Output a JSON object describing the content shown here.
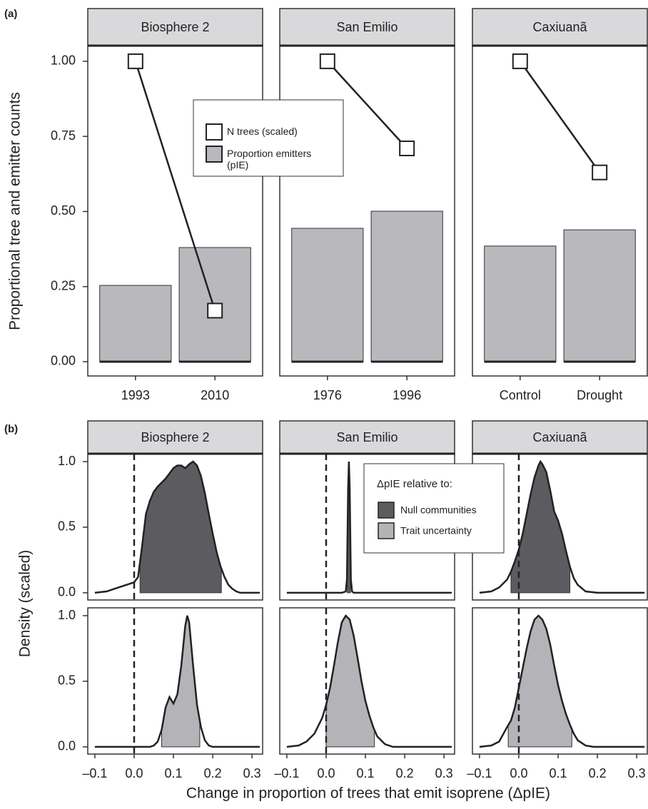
{
  "chart_data": [
    {
      "type": "bar",
      "panel_label": "(a)",
      "y_label": "Proportional tree and emitter counts",
      "ylim": [
        -0.0475,
        1.052
      ],
      "yticks": [
        {
          "value": 0,
          "label": "0.00"
        },
        {
          "value": 0.25,
          "label": "0.25"
        },
        {
          "value": 0.5,
          "label": "0.50"
        },
        {
          "value": 0.75,
          "label": "0.75"
        },
        {
          "value": 1,
          "label": "1.00"
        }
      ],
      "facets": [
        {
          "title": "Biosphere 2",
          "categories": [
            "1993",
            "2010"
          ]
        },
        {
          "title": "San Emilio",
          "categories": [
            "1976",
            "1996"
          ]
        },
        {
          "title": "Caxiuanã",
          "categories": [
            "Control",
            "Drought"
          ]
        }
      ],
      "series": [
        {
          "name": "Proportion emitters (pIE)",
          "type": "bar",
          "color": "#b9b9bd",
          "values": [
            [
              0.254,
              0.38
            ],
            [
              0.444,
              0.501
            ],
            [
              0.385,
              0.439
            ]
          ]
        },
        {
          "name": "N trees (scaled)",
          "type": "line",
          "color": "#ffffff",
          "values": [
            [
              1,
              0.17
            ],
            [
              1,
              0.71
            ],
            [
              1,
              0.63
            ]
          ]
        }
      ]
    },
    {
      "type": "density",
      "panel_label": "(b)",
      "y_label": "Density (scaled)",
      "x_label": "Change in proportion of trees that emit isoprene (ΔpIE)",
      "legend_title": "ΔpIE relative to:",
      "xlim": [
        -0.118,
        0.327
      ],
      "ylim": [
        -0.055,
        1.06
      ],
      "xticks": [
        {
          "value": -0.1,
          "label": "–0.1"
        },
        {
          "value": 0,
          "label": "0.0"
        },
        0.1,
        0.2,
        0.3
      ],
      "yticks": [
        {
          "value": 0,
          "label": "0.0"
        },
        {
          "value": 0.5,
          "label": "0.5"
        },
        {
          "value": 1,
          "label": "1.0"
        }
      ],
      "vline": 0,
      "columns": [
        "Biosphere 2",
        "San Emilio",
        "Caxiuanã"
      ],
      "series": [
        {
          "name": "Null communities",
          "color": "#5c5c60",
          "facets": [
            {
              "x": [
                -0.1,
                -0.07,
                -0.05,
                -0.03,
                -0.01,
                0,
                0.01,
                0.02,
                0.03,
                0.04,
                0.05,
                0.06,
                0.07,
                0.08,
                0.09,
                0.1,
                0.11,
                0.12,
                0.13,
                0.14,
                0.15,
                0.16,
                0.17,
                0.18,
                0.19,
                0.2,
                0.21,
                0.22,
                0.23,
                0.24,
                0.25,
                0.26,
                0.27,
                0.32
              ],
              "values": [
                0,
                0.01,
                0.03,
                0.05,
                0.07,
                0.08,
                0.12,
                0.35,
                0.6,
                0.7,
                0.77,
                0.81,
                0.84,
                0.87,
                0.91,
                0.95,
                0.97,
                0.97,
                0.95,
                0.98,
                1.0,
                0.97,
                0.89,
                0.76,
                0.6,
                0.45,
                0.31,
                0.2,
                0.12,
                0.06,
                0.03,
                0.01,
                0,
                0
              ],
              "interval": [
                0.015,
                0.222
              ]
            },
            {
              "x": [
                -0.1,
                0.04,
                0.05,
                0.053,
                0.056,
                0.058,
                0.06,
                0.063,
                0.066,
                0.07,
                0.32
              ],
              "values": [
                0,
                0,
                0.01,
                0.1,
                0.8,
                1.0,
                0.8,
                0.1,
                0.01,
                0,
                0
              ],
              "interval": [
                0.054,
                0.062
              ]
            },
            {
              "x": [
                -0.1,
                -0.07,
                -0.05,
                -0.03,
                -0.02,
                -0.01,
                0,
                0.01,
                0.02,
                0.03,
                0.04,
                0.05,
                0.055,
                0.06,
                0.07,
                0.08,
                0.09,
                0.1,
                0.11,
                0.12,
                0.13,
                0.14,
                0.15,
                0.17,
                0.2,
                0.32
              ],
              "values": [
                0,
                0.01,
                0.04,
                0.1,
                0.16,
                0.24,
                0.33,
                0.45,
                0.6,
                0.75,
                0.88,
                0.97,
                1.0,
                0.98,
                0.92,
                0.78,
                0.62,
                0.55,
                0.45,
                0.32,
                0.2,
                0.11,
                0.06,
                0.01,
                0,
                0
              ],
              "interval": [
                -0.02,
                0.13
              ]
            }
          ]
        },
        {
          "name": "Trait uncertainty",
          "color": "#b4b4b8",
          "facets": [
            {
              "x": [
                -0.1,
                0.04,
                0.05,
                0.06,
                0.07,
                0.08,
                0.09,
                0.1,
                0.11,
                0.12,
                0.13,
                0.135,
                0.14,
                0.15,
                0.16,
                0.17,
                0.18,
                0.19,
                0.2,
                0.32
              ],
              "values": [
                0,
                0,
                0.01,
                0.04,
                0.13,
                0.3,
                0.38,
                0.33,
                0.4,
                0.62,
                0.92,
                1.0,
                0.95,
                0.62,
                0.32,
                0.15,
                0.05,
                0.01,
                0,
                0
              ],
              "interval": [
                0.07,
                0.167
              ]
            },
            {
              "x": [
                -0.1,
                -0.07,
                -0.05,
                -0.03,
                -0.01,
                0,
                0.01,
                0.02,
                0.03,
                0.04,
                0.05,
                0.06,
                0.07,
                0.08,
                0.09,
                0.1,
                0.11,
                0.12,
                0.13,
                0.14,
                0.15,
                0.17,
                0.32
              ],
              "values": [
                0,
                0.01,
                0.04,
                0.1,
                0.22,
                0.32,
                0.45,
                0.62,
                0.8,
                0.95,
                1.0,
                0.97,
                0.85,
                0.68,
                0.5,
                0.35,
                0.24,
                0.15,
                0.08,
                0.05,
                0.02,
                0,
                0
              ],
              "interval": [
                0,
                0.123
              ]
            },
            {
              "x": [
                -0.1,
                -0.07,
                -0.05,
                -0.03,
                -0.02,
                -0.01,
                0,
                0.01,
                0.02,
                0.03,
                0.04,
                0.05,
                0.06,
                0.07,
                0.08,
                0.09,
                0.1,
                0.11,
                0.12,
                0.13,
                0.14,
                0.15,
                0.17,
                0.19,
                0.32
              ],
              "values": [
                0,
                0.01,
                0.04,
                0.15,
                0.2,
                0.3,
                0.45,
                0.6,
                0.75,
                0.88,
                0.97,
                1.0,
                0.97,
                0.9,
                0.78,
                0.62,
                0.47,
                0.35,
                0.25,
                0.17,
                0.1,
                0.05,
                0.01,
                0,
                0
              ],
              "interval": [
                -0.027,
                0.135
              ]
            }
          ]
        }
      ]
    }
  ]
}
